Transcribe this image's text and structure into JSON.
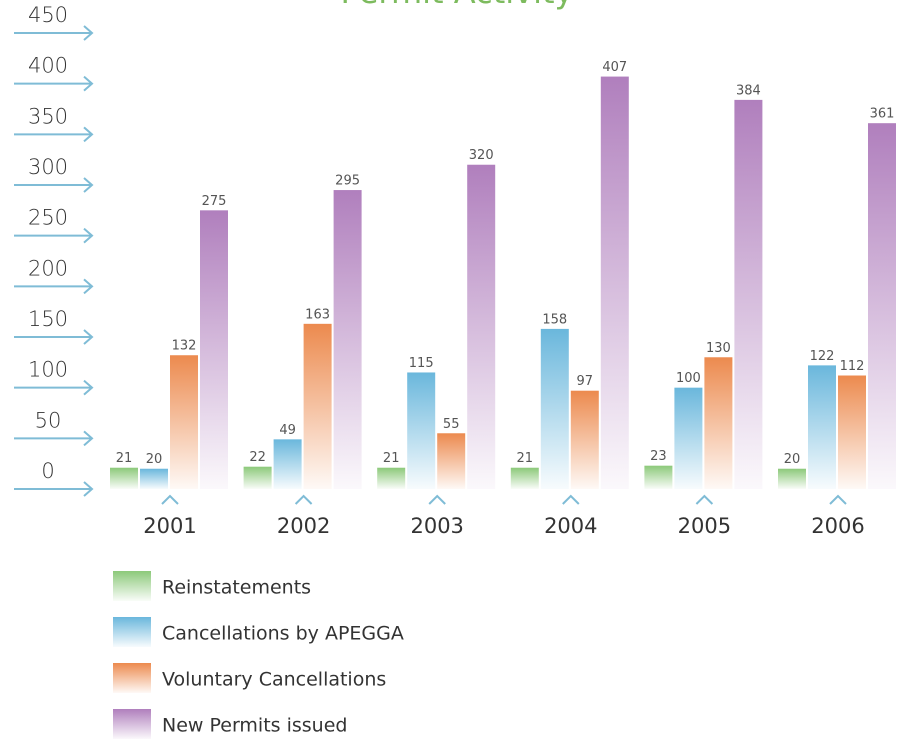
{
  "chart_data": {
    "type": "bar",
    "title": "Permit Activity",
    "categories": [
      "2001",
      "2002",
      "2003",
      "2004",
      "2005",
      "2006"
    ],
    "series": [
      {
        "name": "Reinstatements",
        "color": "#8cc97a",
        "values": [
          21,
          22,
          21,
          21,
          23,
          20
        ]
      },
      {
        "name": "Cancellations by APEGGA",
        "color": "#6ab7dc",
        "values": [
          20,
          49,
          115,
          158,
          100,
          122
        ]
      },
      {
        "name": "Voluntary Cancellations",
        "color": "#ec8a4e",
        "values": [
          132,
          163,
          55,
          97,
          130,
          112
        ]
      },
      {
        "name": "New Permits issued",
        "color": "#b07fbd",
        "values": [
          275,
          295,
          320,
          407,
          384,
          361
        ]
      }
    ],
    "ylim": [
      0,
      450
    ],
    "yticks": [
      0,
      50,
      100,
      150,
      200,
      250,
      300,
      350,
      400,
      450
    ]
  }
}
